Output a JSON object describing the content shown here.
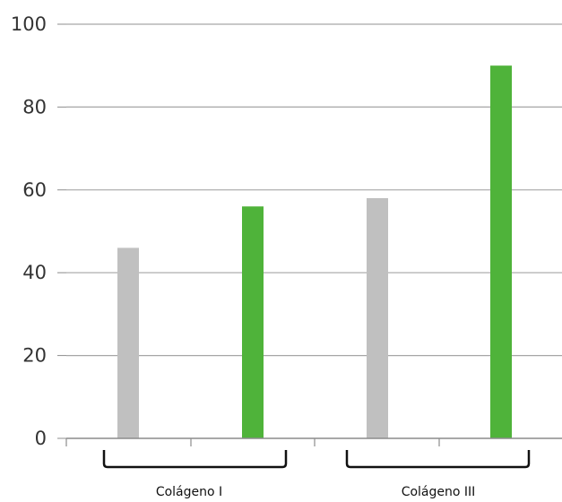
{
  "chart_data": {
    "type": "bar",
    "title": "",
    "xlabel": "",
    "ylabel": "",
    "ylim": [
      0,
      100
    ],
    "yticks": [
      0,
      20,
      40,
      60,
      80,
      100
    ],
    "grid": true,
    "groups": [
      "Colágeno I",
      "Colágeno III"
    ],
    "bars": [
      {
        "group": "Colágeno I",
        "value": 46,
        "color": "#c0c0c0"
      },
      {
        "group": "Colágeno I",
        "value": 56,
        "color": "#4fb33a"
      },
      {
        "group": "Colágeno III",
        "value": 58,
        "color": "#c0c0c0"
      },
      {
        "group": "Colágeno III",
        "value": 90,
        "color": "#4fb33a"
      }
    ],
    "colors": {
      "grid": "#a6a6a6",
      "axis": "#8c8c8c",
      "bracket": "#111111"
    }
  }
}
